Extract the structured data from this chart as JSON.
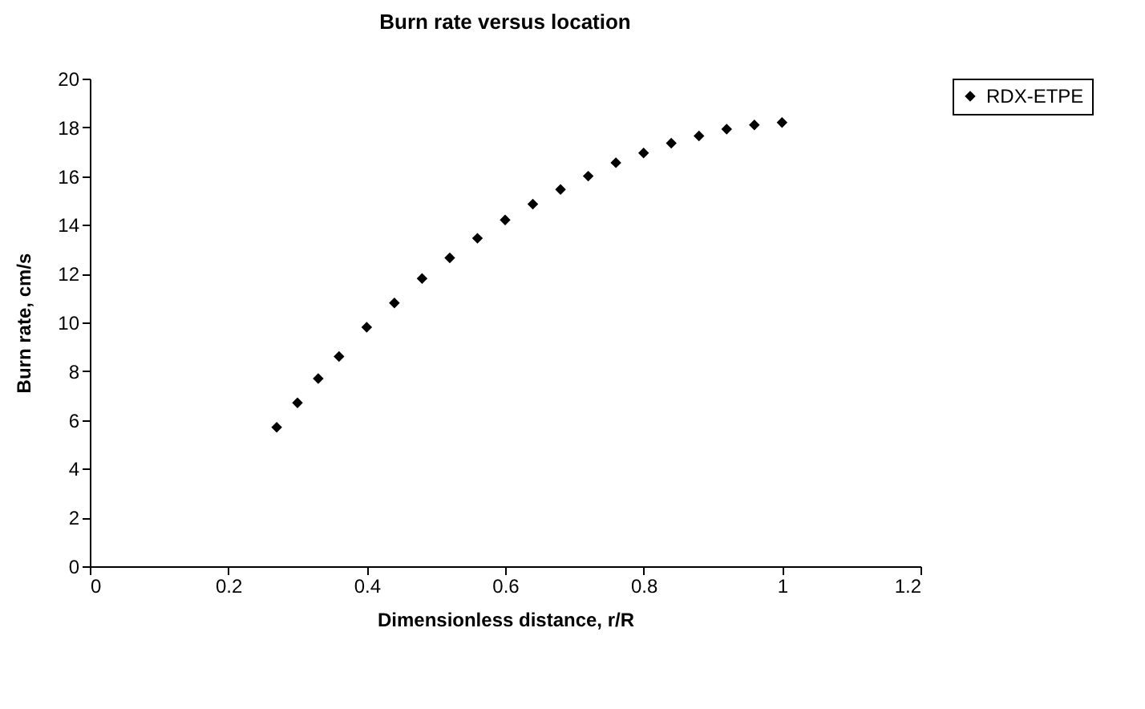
{
  "chart_data": {
    "type": "scatter",
    "title": "Burn rate versus location",
    "xlabel": "Dimensionless distance, r/R",
    "ylabel": "Burn rate, cm/s",
    "x": [
      0.27,
      0.3,
      0.33,
      0.36,
      0.4,
      0.44,
      0.48,
      0.52,
      0.56,
      0.6,
      0.64,
      0.68,
      0.72,
      0.76,
      0.8,
      0.84,
      0.88,
      0.92,
      0.96,
      1.0
    ],
    "series": [
      {
        "name": "RDX-ETPE",
        "color": "#000000",
        "values": [
          5.7,
          6.7,
          7.7,
          8.6,
          9.8,
          10.8,
          11.8,
          12.65,
          13.45,
          14.2,
          14.85,
          15.45,
          16.0,
          16.55,
          16.95,
          17.35,
          17.65,
          17.93,
          18.1,
          18.2
        ]
      }
    ],
    "xlim": [
      0,
      1.2
    ],
    "xticks": [
      0,
      0.2,
      0.4,
      0.6,
      0.8,
      1,
      1.2
    ],
    "ylim": [
      0,
      20
    ],
    "yticks": [
      0,
      2,
      4,
      6,
      8,
      10,
      12,
      14,
      16,
      18,
      20
    ],
    "grid": false,
    "legend": "right",
    "marker": "diamond"
  }
}
